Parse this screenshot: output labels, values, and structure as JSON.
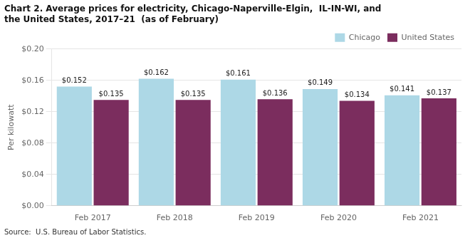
{
  "chart_data": {
    "type": "bar",
    "title": "Chart 2. Average prices for electricity, Chicago-Naperville-Elgin,  IL-IN-WI, and\nthe United States, 2017–21  (as of February)",
    "ylabel": "Per kilowatt",
    "categories": [
      "Feb 2017",
      "Feb 2018",
      "Feb 2019",
      "Feb 2020",
      "Feb 2021"
    ],
    "series": [
      {
        "name": "Chicago",
        "color": "#add8e6",
        "values": [
          0.152,
          0.162,
          0.161,
          0.149,
          0.141
        ],
        "value_labels": [
          "$0.152",
          "$0.162",
          "$0.161",
          "$0.149",
          "$0.141"
        ]
      },
      {
        "name": "United States",
        "color": "#7b2d5e",
        "values": [
          0.135,
          0.135,
          0.136,
          0.134,
          0.137
        ],
        "value_labels": [
          "$0.135",
          "$0.135",
          "$0.136",
          "$0.134",
          "$0.137"
        ]
      }
    ],
    "ylim": [
      0.0,
      0.2
    ],
    "yticks": [
      {
        "value": 0.0,
        "label": "$0.00"
      },
      {
        "value": 0.04,
        "label": "$0.04"
      },
      {
        "value": 0.08,
        "label": "$0.08"
      },
      {
        "value": 0.12,
        "label": "$0.12"
      },
      {
        "value": 0.16,
        "label": "$0.16"
      },
      {
        "value": 0.2,
        "label": "$0.20"
      }
    ],
    "grid": true,
    "legend": "upper right",
    "data_labels": true,
    "annotations": [
      "Source:  U.S. Bureau of Labor Statistics."
    ]
  }
}
